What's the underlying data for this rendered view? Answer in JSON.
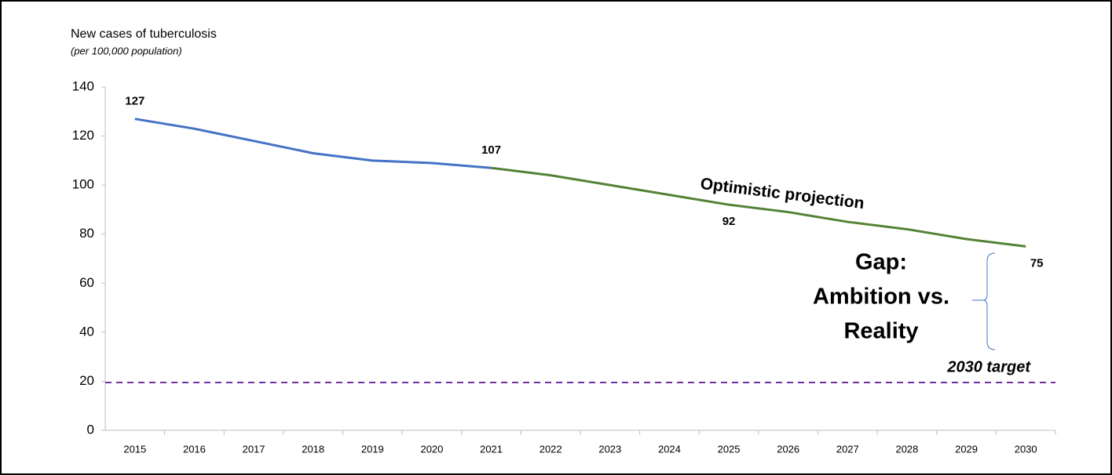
{
  "chart_data": {
    "type": "line",
    "title": "New cases of tuberculosis",
    "subtitle": "(per 100,000 population)",
    "categories": [
      "2015",
      "2016",
      "2017",
      "2018",
      "2019",
      "2020",
      "2021",
      "2022",
      "2023",
      "2024",
      "2025",
      "2026",
      "2027",
      "2028",
      "2029",
      "2030"
    ],
    "series": [
      {
        "color": "#4472c4",
        "values": [
          127,
          123,
          118,
          113,
          110,
          109,
          107,
          null,
          null,
          null,
          null,
          null,
          null,
          null,
          null,
          null
        ],
        "labels_at": [
          0,
          6
        ]
      },
      {
        "color": "#548235",
        "values": [
          null,
          null,
          null,
          null,
          null,
          null,
          107,
          104,
          100,
          96,
          92,
          89,
          85,
          82,
          78,
          75
        ],
        "labels_at": [
          10,
          15
        ]
      }
    ],
    "ylim": [
      0,
      140
    ],
    "yticks": [
      0,
      20,
      40,
      60,
      80,
      100,
      120,
      140
    ],
    "grid": false,
    "target": {
      "value": 19.5,
      "label": "2030 target",
      "color": "#7030a0"
    },
    "annotations": {
      "projection": {
        "text": "Optimistic projection",
        "color": "#548235"
      },
      "gap": {
        "lines": [
          "Gap:",
          "Ambition vs.",
          "Reality"
        ],
        "color": "#ff0000"
      }
    }
  }
}
